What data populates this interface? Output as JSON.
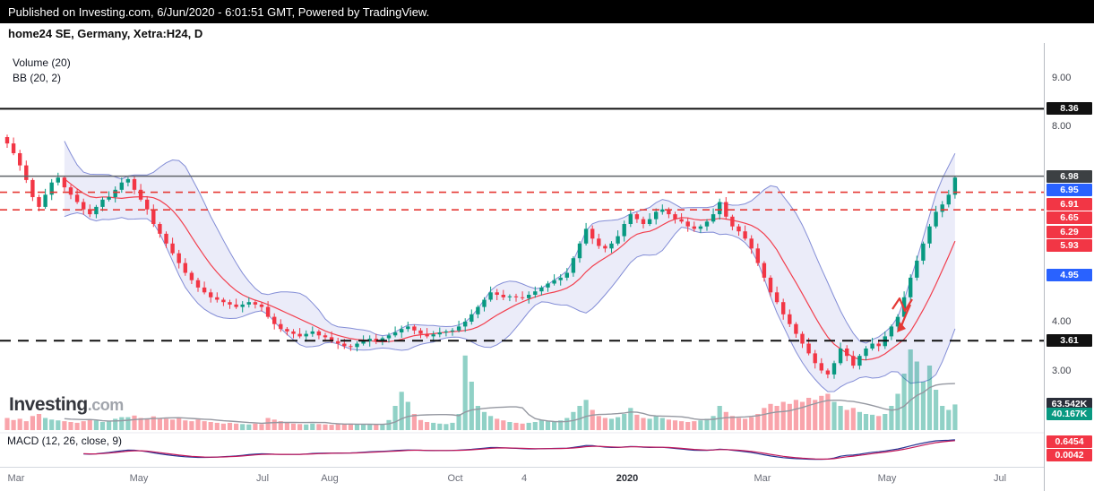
{
  "header": {
    "published_line": "Published on Investing.com, 6/Jun/2020 - 6:01:51 GMT, Powered by TradingView.",
    "title": "home24 SE, Germany, Xetra:H24, D"
  },
  "indicators": {
    "volume_label": "Volume (20)",
    "bb_label": "BB (20, 2)",
    "macd_label": "MACD (12, 26, close, 9)"
  },
  "watermark": {
    "brand": "Investing",
    "suffix": ".com"
  },
  "chart_data": {
    "type": "candlestick",
    "title": "home24 SE, Germany, Xetra:H24, D",
    "x_axis_labels": [
      "Mar",
      "May",
      "Jul",
      "Aug",
      "Oct",
      "4",
      "2020",
      "Mar",
      "May",
      "Jul"
    ],
    "y_axis_ticks": [
      "9.00",
      "8.00",
      "4.00",
      "3.00"
    ],
    "ylim": [
      1.8,
      9.8
    ],
    "closes": [
      7.65,
      7.45,
      7.2,
      6.9,
      6.55,
      6.35,
      6.6,
      6.85,
      6.95,
      6.75,
      6.6,
      6.45,
      6.3,
      6.2,
      6.35,
      6.5,
      6.55,
      6.7,
      6.85,
      6.92,
      6.7,
      6.5,
      6.3,
      6.0,
      5.8,
      5.6,
      5.4,
      5.2,
      5.0,
      4.85,
      4.7,
      4.6,
      4.5,
      4.45,
      4.4,
      4.35,
      4.3,
      4.35,
      4.4,
      4.35,
      4.3,
      4.1,
      3.95,
      3.85,
      3.8,
      3.75,
      3.7,
      3.75,
      3.8,
      3.72,
      3.68,
      3.6,
      3.55,
      3.5,
      3.48,
      3.55,
      3.6,
      3.65,
      3.6,
      3.66,
      3.72,
      3.78,
      3.85,
      3.9,
      3.82,
      3.75,
      3.7,
      3.74,
      3.78,
      3.8,
      3.82,
      3.9,
      4.0,
      4.15,
      4.3,
      4.45,
      4.6,
      4.55,
      4.5,
      4.52,
      4.5,
      4.48,
      4.55,
      4.62,
      4.7,
      4.78,
      4.85,
      4.9,
      5.0,
      5.3,
      5.6,
      5.9,
      5.7,
      5.55,
      5.5,
      5.6,
      5.75,
      6.0,
      6.2,
      6.1,
      6.0,
      6.1,
      6.25,
      6.3,
      6.2,
      6.1,
      6.05,
      5.95,
      5.9,
      5.95,
      6.05,
      6.2,
      6.45,
      6.15,
      5.95,
      5.85,
      5.7,
      5.5,
      5.2,
      4.9,
      4.6,
      4.4,
      4.15,
      3.95,
      3.75,
      3.55,
      3.35,
      3.15,
      3.0,
      2.92,
      3.15,
      3.45,
      3.3,
      3.1,
      3.3,
      3.45,
      3.55,
      3.5,
      3.7,
      3.9,
      4.1,
      4.5,
      4.9,
      5.25,
      5.6,
      5.95,
      6.25,
      6.4,
      6.6,
      6.95
    ],
    "volumes": [
      30,
      25,
      28,
      22,
      35,
      40,
      30,
      26,
      24,
      22,
      20,
      18,
      22,
      26,
      24,
      20,
      22,
      28,
      32,
      32,
      36,
      30,
      28,
      34,
      30,
      28,
      26,
      30,
      24,
      22,
      26,
      22,
      20,
      18,
      16,
      18,
      16,
      15,
      14,
      16,
      15,
      30,
      26,
      22,
      18,
      16,
      15,
      14,
      16,
      15,
      14,
      13,
      15,
      14,
      16,
      15,
      14,
      13,
      14,
      15,
      25,
      60,
      95,
      70,
      40,
      25,
      20,
      18,
      16,
      15,
      18,
      40,
      185,
      120,
      60,
      45,
      35,
      28,
      24,
      20,
      18,
      16,
      18,
      20,
      25,
      22,
      20,
      24,
      30,
      45,
      60,
      75,
      50,
      35,
      30,
      28,
      32,
      40,
      55,
      38,
      30,
      28,
      35,
      30,
      26,
      24,
      22,
      20,
      22,
      24,
      28,
      35,
      60,
      45,
      35,
      30,
      28,
      32,
      40,
      55,
      65,
      60,
      70,
      65,
      75,
      70,
      80,
      75,
      85,
      90,
      70,
      60,
      50,
      55,
      45,
      40,
      38,
      35,
      40,
      60,
      90,
      140,
      200,
      170,
      120,
      160,
      100,
      60,
      50,
      63.542
    ],
    "levels": [
      {
        "price": 8.36,
        "color": "#111111",
        "style": "solid",
        "width": 2
      },
      {
        "price": 6.98,
        "color": "#5f6368",
        "style": "solid",
        "width": 1.5
      },
      {
        "price": 6.65,
        "color": "#e53935",
        "style": "dashed",
        "width": 1.6
      },
      {
        "price": 6.29,
        "color": "#e53935",
        "style": "dashed",
        "width": 1.6
      },
      {
        "price": 3.61,
        "color": "#111111",
        "style": "dashed",
        "width": 2
      }
    ],
    "price_badges": [
      {
        "label": "8.36",
        "price": 8.36,
        "bg": "#111111"
      },
      {
        "label": "6.98",
        "price": 6.98,
        "bg": "#3c4043"
      },
      {
        "label": "6.95",
        "price": 6.95,
        "bg": "#2962ff"
      },
      {
        "label": "6.91",
        "price": 6.91,
        "bg": "#f23645"
      },
      {
        "label": "6.65",
        "price": 6.65,
        "bg": "#f23645"
      },
      {
        "label": "6.29",
        "price": 6.29,
        "bg": "#f23645"
      },
      {
        "label": "5.93",
        "price": 5.93,
        "bg": "#f23645"
      },
      {
        "label": "4.95",
        "price": 4.95,
        "bg": "#2962ff"
      },
      {
        "label": "3.61",
        "price": 3.61,
        "bg": "#111111"
      }
    ],
    "volume_badges": [
      {
        "label": "63.542K",
        "bg": "#2a2e39"
      },
      {
        "label": "40.167K",
        "bg": "#089981"
      }
    ],
    "macd_badges": [
      {
        "label": "0.6454",
        "value": 0.6454,
        "bg": "#f23645"
      },
      {
        "label": "0.0042",
        "value": 0.0042,
        "bg": "#f23645"
      }
    ],
    "colors": {
      "up": "#089981",
      "down": "#f23645",
      "bb_fill": "rgba(98,110,212,0.13)",
      "bb_edge": "#5261c6",
      "bb_mid": "#f23645",
      "vol_up": "rgba(8,153,129,0.45)",
      "vol_down": "rgba(242,54,69,0.45)",
      "vol_ma": "#9598a1",
      "macd_line": "#283593",
      "macd_signal": "#c2185b",
      "annotation": "#e53935"
    }
  }
}
